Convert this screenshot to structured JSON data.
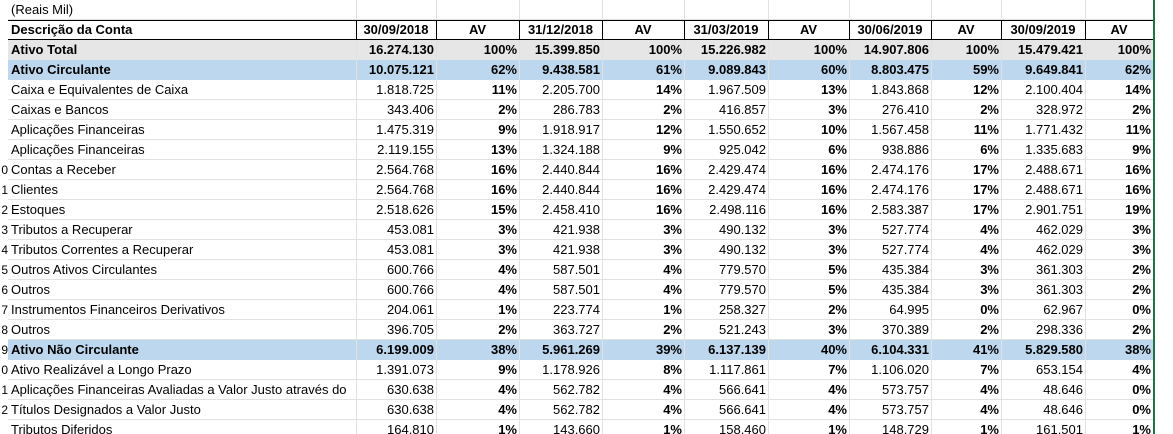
{
  "header": {
    "unit": "(Reais Mil)",
    "desc_label": "Descrição da Conta",
    "cols": [
      "30/09/2018",
      "AV",
      "31/12/2018",
      "AV",
      "31/03/2019",
      "AV",
      "30/06/2019",
      "AV",
      "30/09/2019",
      "AV"
    ]
  },
  "row_numbers": [
    "",
    "",
    "",
    "",
    "",
    "",
    "",
    "",
    "0",
    "1",
    "2",
    "3",
    "4",
    "5",
    "6",
    "7",
    "8",
    "9",
    "0",
    "1",
    "2"
  ],
  "rows": [
    {
      "desc": "Ativo Total",
      "cells": [
        "16.274.130",
        "100%",
        "15.399.850",
        "100%",
        "15.226.982",
        "100%",
        "14.907.806",
        "100%",
        "15.479.421",
        "100%"
      ],
      "style": "gray"
    },
    {
      "desc": "Ativo Circulante",
      "cells": [
        "10.075.121",
        "62%",
        "9.438.581",
        "61%",
        "9.089.843",
        "60%",
        "8.803.475",
        "59%",
        "9.649.841",
        "62%"
      ],
      "style": "hl"
    },
    {
      "desc": "Caixa e Equivalentes de Caixa",
      "cells": [
        "1.818.725",
        "11%",
        "2.205.700",
        "14%",
        "1.967.509",
        "13%",
        "1.843.868",
        "12%",
        "2.100.404",
        "14%"
      ],
      "style": ""
    },
    {
      "desc": "Caixas e Bancos",
      "cells": [
        "343.406",
        "2%",
        "286.783",
        "2%",
        "416.857",
        "3%",
        "276.410",
        "2%",
        "328.972",
        "2%"
      ],
      "style": ""
    },
    {
      "desc": "Aplicações Financeiras",
      "cells": [
        "1.475.319",
        "9%",
        "1.918.917",
        "12%",
        "1.550.652",
        "10%",
        "1.567.458",
        "11%",
        "1.771.432",
        "11%"
      ],
      "style": ""
    },
    {
      "desc": "Aplicações Financeiras",
      "cells": [
        "2.119.155",
        "13%",
        "1.324.188",
        "9%",
        "925.042",
        "6%",
        "938.886",
        "6%",
        "1.335.683",
        "9%"
      ],
      "style": ""
    },
    {
      "desc": "Contas a Receber",
      "cells": [
        "2.564.768",
        "16%",
        "2.440.844",
        "16%",
        "2.429.474",
        "16%",
        "2.474.176",
        "17%",
        "2.488.671",
        "16%"
      ],
      "style": ""
    },
    {
      "desc": "Clientes",
      "cells": [
        "2.564.768",
        "16%",
        "2.440.844",
        "16%",
        "2.429.474",
        "16%",
        "2.474.176",
        "17%",
        "2.488.671",
        "16%"
      ],
      "style": ""
    },
    {
      "desc": "Estoques",
      "cells": [
        "2.518.626",
        "15%",
        "2.458.410",
        "16%",
        "2.498.116",
        "16%",
        "2.583.387",
        "17%",
        "2.901.751",
        "19%"
      ],
      "style": ""
    },
    {
      "desc": "Tributos a Recuperar",
      "cells": [
        "453.081",
        "3%",
        "421.938",
        "3%",
        "490.132",
        "3%",
        "527.774",
        "4%",
        "462.029",
        "3%"
      ],
      "style": ""
    },
    {
      "desc": "Tributos Correntes a Recuperar",
      "cells": [
        "453.081",
        "3%",
        "421.938",
        "3%",
        "490.132",
        "3%",
        "527.774",
        "4%",
        "462.029",
        "3%"
      ],
      "style": ""
    },
    {
      "desc": "Outros Ativos Circulantes",
      "cells": [
        "600.766",
        "4%",
        "587.501",
        "4%",
        "779.570",
        "5%",
        "435.384",
        "3%",
        "361.303",
        "2%"
      ],
      "style": ""
    },
    {
      "desc": "Outros",
      "cells": [
        "600.766",
        "4%",
        "587.501",
        "4%",
        "779.570",
        "5%",
        "435.384",
        "3%",
        "361.303",
        "2%"
      ],
      "style": ""
    },
    {
      "desc": "Instrumentos Financeiros Derivativos",
      "cells": [
        "204.061",
        "1%",
        "223.774",
        "1%",
        "258.327",
        "2%",
        "64.995",
        "0%",
        "62.967",
        "0%"
      ],
      "style": ""
    },
    {
      "desc": "Outros",
      "cells": [
        "396.705",
        "2%",
        "363.727",
        "2%",
        "521.243",
        "3%",
        "370.389",
        "2%",
        "298.336",
        "2%"
      ],
      "style": ""
    },
    {
      "desc": "Ativo Não Circulante",
      "cells": [
        "6.199.009",
        "38%",
        "5.961.269",
        "39%",
        "6.137.139",
        "40%",
        "6.104.331",
        "41%",
        "5.829.580",
        "38%"
      ],
      "style": "hl"
    },
    {
      "desc": "Ativo Realizável a Longo Prazo",
      "cells": [
        "1.391.073",
        "9%",
        "1.178.926",
        "8%",
        "1.117.861",
        "7%",
        "1.106.020",
        "7%",
        "653.154",
        "4%"
      ],
      "style": ""
    },
    {
      "desc": "Aplicações Financeiras Avaliadas a Valor Justo através do",
      "cells": [
        "630.638",
        "4%",
        "562.782",
        "4%",
        "566.641",
        "4%",
        "573.757",
        "4%",
        "48.646",
        "0%"
      ],
      "style": ""
    },
    {
      "desc": "Títulos Designados a Valor Justo",
      "cells": [
        "630.638",
        "4%",
        "562.782",
        "4%",
        "566.641",
        "4%",
        "573.757",
        "4%",
        "48.646",
        "0%"
      ],
      "style": ""
    },
    {
      "desc": "Tributos Diferidos",
      "cells": [
        "164.810",
        "1%",
        "143.660",
        "1%",
        "158.460",
        "1%",
        "148.729",
        "1%",
        "161.501",
        "1%"
      ],
      "style": ""
    }
  ]
}
